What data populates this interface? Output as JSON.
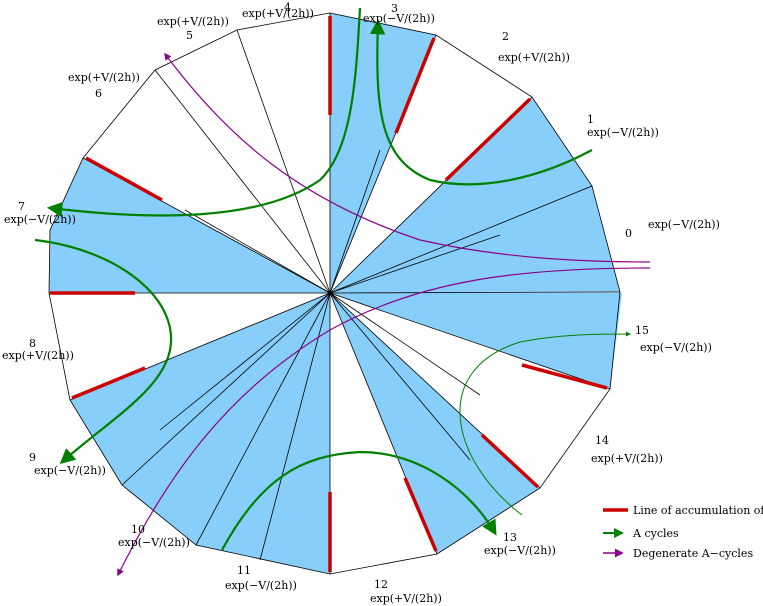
{
  "colors": {
    "shaded": "#87cefa",
    "zeroes": "#cc0000",
    "a_cycles": "#008000",
    "degenerate": "#8b008b",
    "edge": "#000000"
  },
  "sectors": [
    {
      "index": "0",
      "label": "exp(−V/(2h))"
    },
    {
      "index": "1",
      "label": "exp(−V/(2h))"
    },
    {
      "index": "2",
      "label": "exp(+V/(2h))"
    },
    {
      "index": "3",
      "label": "exp(−V/(2h))"
    },
    {
      "index": "4",
      "label": "exp(+V/(2h))"
    },
    {
      "index": "5",
      "label": "exp(+V/(2h))"
    },
    {
      "index": "6",
      "label": "exp(+V/(2h))"
    },
    {
      "index": "7",
      "label": "exp(−V/(2h))"
    },
    {
      "index": "8",
      "label": "exp(+V/(2h))"
    },
    {
      "index": "9",
      "label": "exp(−V/(2h))"
    },
    {
      "index": "10",
      "label": "exp(−V/(2h))"
    },
    {
      "index": "11",
      "label": "exp(−V/(2h))"
    },
    {
      "index": "12",
      "label": "exp(+V/(2h))"
    },
    {
      "index": "13",
      "label": "exp(−V/(2h))"
    },
    {
      "index": "14",
      "label": "exp(+V/(2h))"
    },
    {
      "index": "15",
      "label": "exp(−V/(2h))"
    }
  ],
  "legend": {
    "zeroes": "Line of accumulation of zeroes",
    "a_cycles": "A cycles",
    "degenerate": "Degenerate A−cycles"
  }
}
